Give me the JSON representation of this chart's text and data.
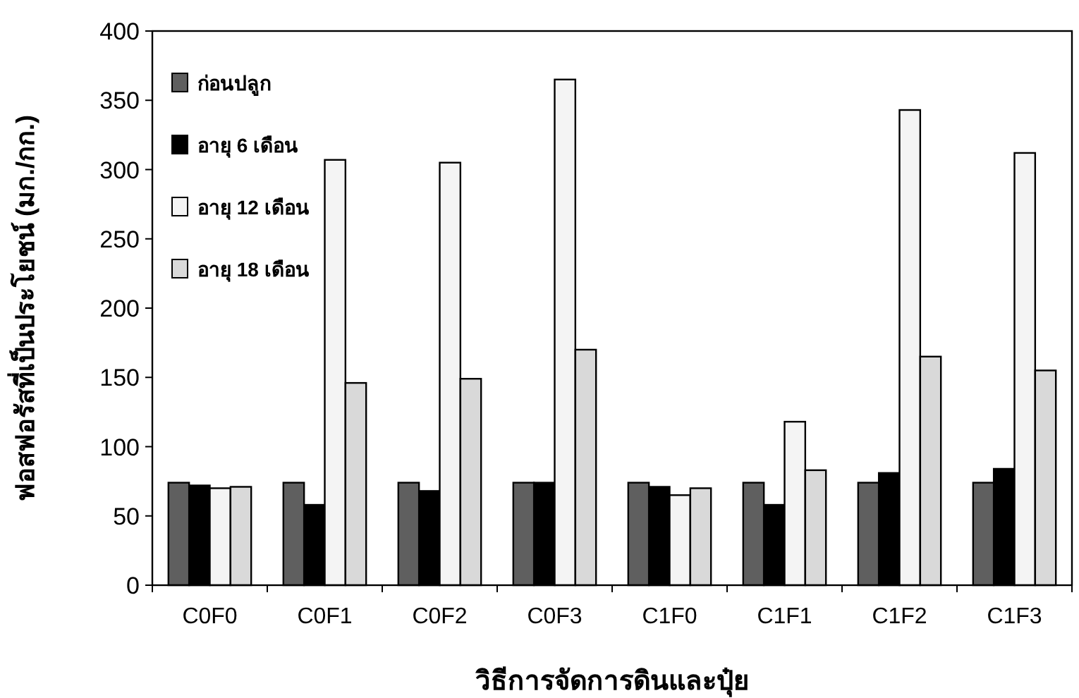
{
  "chart_data": {
    "type": "bar",
    "xlabel": "วิธีการจัดการดินและปุ๋ย",
    "ylabel": "ฟอสฟอรัสที่เป็นประโยชน์ (มก./กก.)",
    "categories": [
      "C0F0",
      "C0F1",
      "C0F2",
      "C0F3",
      "C1F0",
      "C1F1",
      "C1F2",
      "C1F3"
    ],
    "series": [
      {
        "name": "ก่อนปลูก",
        "color": "#5f5f5f",
        "values": [
          74,
          74,
          74,
          74,
          74,
          74,
          74,
          74
        ]
      },
      {
        "name": "อายุ 6 เดือน",
        "color": "#000000",
        "values": [
          72,
          58,
          68,
          74,
          71,
          58,
          81,
          84
        ]
      },
      {
        "name": "อายุ 12 เดือน",
        "color": "#f4f4f4",
        "values": [
          70,
          307,
          305,
          365,
          65,
          118,
          343,
          312
        ]
      },
      {
        "name": "อายุ 18 เดือน",
        "color": "#d9d9d9",
        "values": [
          71,
          146,
          149,
          170,
          70,
          83,
          165,
          155
        ]
      }
    ],
    "ylim": [
      0,
      400
    ],
    "yticks": [
      0,
      50,
      100,
      150,
      200,
      250,
      300,
      350,
      400
    ],
    "legend": "top left"
  }
}
